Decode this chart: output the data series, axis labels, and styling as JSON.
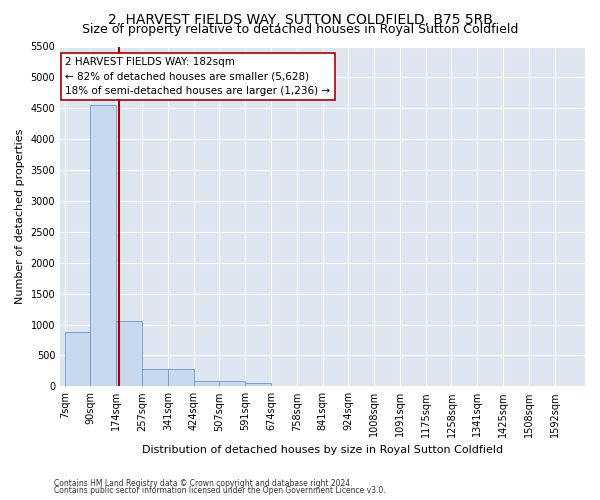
{
  "title": "2, HARVEST FIELDS WAY, SUTTON COLDFIELD, B75 5RB",
  "subtitle": "Size of property relative to detached houses in Royal Sutton Coldfield",
  "xlabel": "Distribution of detached houses by size in Royal Sutton Coldfield",
  "ylabel": "Number of detached properties",
  "footnote1": "Contains HM Land Registry data © Crown copyright and database right 2024.",
  "footnote2": "Contains public sector information licensed under the Open Government Licence v3.0.",
  "bar_edges": [
    7,
    90,
    174,
    257,
    341,
    424,
    507,
    591,
    674,
    758,
    841,
    924,
    1008,
    1091,
    1175,
    1258,
    1341,
    1425,
    1508,
    1592,
    1675
  ],
  "bar_values": [
    880,
    4560,
    1060,
    285,
    285,
    80,
    80,
    55,
    0,
    0,
    0,
    0,
    0,
    0,
    0,
    0,
    0,
    0,
    0,
    0
  ],
  "bar_color": "#c8d8ee",
  "bar_edgecolor": "#6699cc",
  "property_size": 182,
  "property_label": "2 HARVEST FIELDS WAY: 182sqm",
  "annotation_line1": "← 82% of detached houses are smaller (5,628)",
  "annotation_line2": "18% of semi-detached houses are larger (1,236) →",
  "vline_color": "#aa0000",
  "annotation_box_edgecolor": "#aa0000",
  "ylim": [
    0,
    5500
  ],
  "yticks": [
    0,
    500,
    1000,
    1500,
    2000,
    2500,
    3000,
    3500,
    4000,
    4500,
    5000,
    5500
  ],
  "bg_color": "#dde5f0",
  "plot_bg_color": "#dde5f0",
  "grid_color": "#ffffff",
  "title_fontsize": 10,
  "subtitle_fontsize": 9,
  "tick_fontsize": 7,
  "ylabel_fontsize": 8,
  "xlabel_fontsize": 8
}
